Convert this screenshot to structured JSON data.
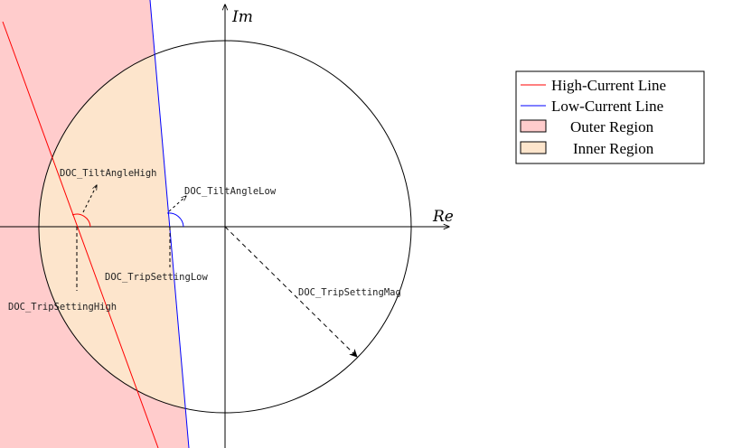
{
  "axes": {
    "real_label": "Re",
    "imag_label": "Im"
  },
  "annotations": {
    "tilt_angle_high": "DOC_TiltAngleHigh",
    "tilt_angle_low": "DOC_TiltAngleLow",
    "trip_setting_low": "DOC_TripSettingLow",
    "trip_setting_high": "DOC_TripSettingHigh",
    "trip_setting_mag": "DOC_TripSettingMag"
  },
  "legend": {
    "high_current_line": "High-Current Line",
    "low_current_line": "Low-Current Line",
    "outer_region": "Outer Region",
    "inner_region": "Inner Region"
  },
  "colors": {
    "high_current_line": "#ff0000",
    "low_current_line": "#0000ff",
    "outer_region": "#ffcccc",
    "inner_region": "#fde5cc",
    "axis": "#000000"
  }
}
